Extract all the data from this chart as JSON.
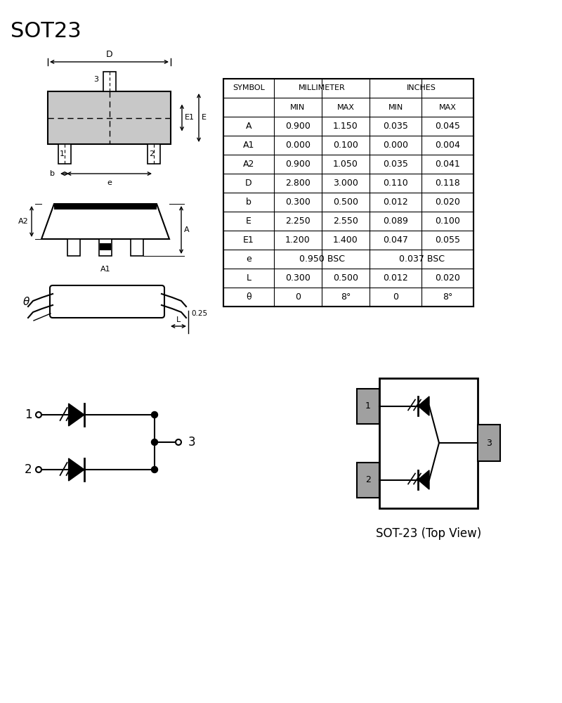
{
  "title": "SOT23",
  "bg_color": "#ffffff",
  "table_data": [
    [
      "A",
      "0.900",
      "1.150",
      "0.035",
      "0.045"
    ],
    [
      "A1",
      "0.000",
      "0.100",
      "0.000",
      "0.004"
    ],
    [
      "A2",
      "0.900",
      "1.050",
      "0.035",
      "0.041"
    ],
    [
      "D",
      "2.800",
      "3.000",
      "0.110",
      "0.118"
    ],
    [
      "b",
      "0.300",
      "0.500",
      "0.012",
      "0.020"
    ],
    [
      "E",
      "2.250",
      "2.550",
      "0.089",
      "0.100"
    ],
    [
      "E1",
      "1.200",
      "1.400",
      "0.047",
      "0.055"
    ],
    [
      "e",
      "0.950 BSC",
      "",
      "0.037 BSC",
      ""
    ],
    [
      "L",
      "0.300",
      "0.500",
      "0.012",
      "0.020"
    ],
    [
      "θ",
      "0",
      "8°",
      "0",
      "8°"
    ]
  ],
  "lc": "#000000",
  "gf": "#c8c8c8",
  "pad_gray": "#a0a0a0"
}
